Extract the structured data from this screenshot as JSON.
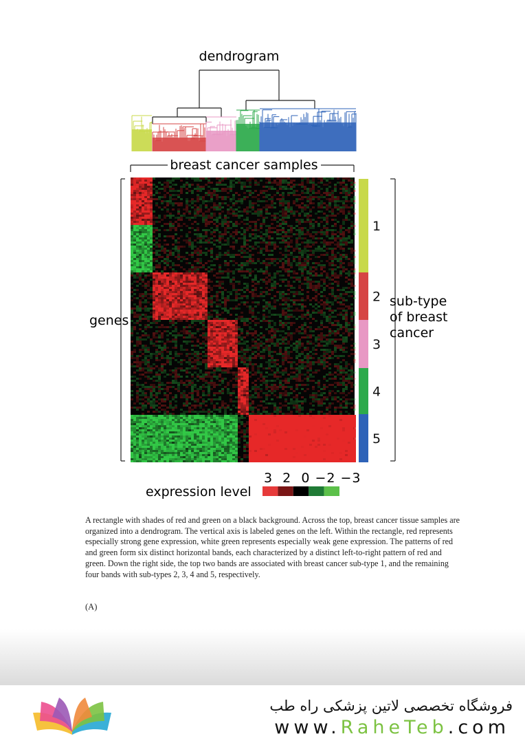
{
  "figure": {
    "dendrogram_label": "dendrogram",
    "samples_label": "breast cancer samples",
    "genes_label": "genes",
    "subtype_label_lines": [
      "sub-type",
      "of breast",
      "cancer"
    ],
    "subtypes": [
      {
        "label": "1",
        "color": "#c8d94a"
      },
      {
        "label": "2",
        "color": "#d64545"
      },
      {
        "label": "3",
        "color": "#e898c4"
      },
      {
        "label": "4",
        "color": "#2daa4b"
      },
      {
        "label": "5",
        "color": "#2e63b8"
      }
    ],
    "legend": {
      "title": "expression level",
      "scale_text": "3  2  0 −2 −3",
      "colors": [
        "#e63a3a",
        "#7a1616",
        "#000000",
        "#1f7a35",
        "#5cc04a"
      ]
    }
  },
  "caption": "A rectangle with shades of red and green on a black background. Across the top, breast cancer tissue samples are organized into a dendrogram. The vertical axis is labeled genes on the left. Within the rectangle, red represents especially strong gene expression, white green represents especially weak gene expression. The patterns of red and green form six distinct horizontal bands, each characterized by a distinct left-to-right pattern of red and green. Down the right side, the top two bands are associated with breast cancer sub-type 1, and the remaining four bands with sub-types 2, 3, 4 and 5, respectively.",
  "panel_label": "(A)",
  "footer": {
    "persian_title": "فروشگاه تخصصی لاتین پزشکی  راه طب",
    "site_prefix": "www.",
    "site_highlight": "RaheTeb",
    "site_suffix": ".com"
  }
}
